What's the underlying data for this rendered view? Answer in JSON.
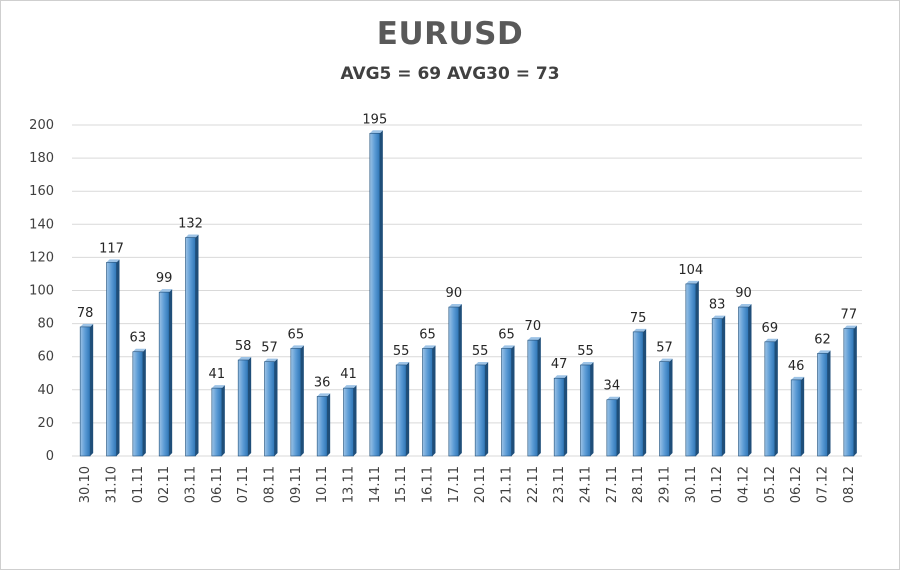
{
  "chart_data": {
    "type": "bar",
    "title": "EURUSD",
    "subtitle": "AVG5 = 69 AVG30 = 73",
    "xlabel": "",
    "ylabel": "",
    "ylim": [
      0,
      200
    ],
    "yticks": [
      0,
      20,
      40,
      60,
      80,
      100,
      120,
      140,
      160,
      180,
      200
    ],
    "grid": true,
    "categories": [
      "30.10",
      "31.10",
      "01.11",
      "02.11",
      "03.11",
      "06.11",
      "07.11",
      "08.11",
      "09.11",
      "10.11",
      "13.11",
      "14.11",
      "15.11",
      "16.11",
      "17.11",
      "20.11",
      "21.11",
      "22.11",
      "23.11",
      "24.11",
      "27.11",
      "28.11",
      "29.11",
      "30.11",
      "01.12",
      "04.12",
      "05.12",
      "06.12",
      "07.12",
      "08.12"
    ],
    "values": [
      78,
      117,
      63,
      99,
      132,
      41,
      58,
      57,
      65,
      36,
      41,
      195,
      55,
      65,
      90,
      55,
      65,
      70,
      47,
      55,
      34,
      75,
      57,
      104,
      83,
      90,
      69,
      46,
      62,
      77
    ],
    "colors": {
      "bar_light": "#9dc3e6",
      "bar_mid": "#5b9bd5",
      "bar_dark": "#2e75b6",
      "bar_edge": "#1f4e79",
      "grid": "#d9d9d9"
    }
  }
}
